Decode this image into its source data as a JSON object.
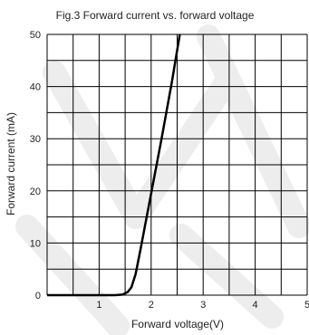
{
  "chart_data": {
    "type": "line",
    "title": "Fig.3 Forward current vs. forward voltage",
    "xlabel": "Forward voltage(V)",
    "ylabel": "Forward current (mA)",
    "xlim": [
      0,
      5
    ],
    "ylim": [
      0,
      50
    ],
    "xticks": [
      1,
      2,
      3,
      4,
      5
    ],
    "yticks": [
      0,
      10,
      20,
      30,
      40,
      50
    ],
    "grid": true,
    "x_minor_step": 0.5,
    "y_minor_step": 5,
    "series": [
      {
        "x": [
          0,
          1.0,
          1.3,
          1.45,
          1.55,
          1.62,
          1.7,
          1.8,
          2.0,
          2.2,
          2.4,
          2.55
        ],
        "y": [
          0,
          0,
          0,
          0.1,
          0.6,
          1.5,
          4,
          9,
          19.5,
          30,
          41,
          50
        ]
      }
    ]
  }
}
